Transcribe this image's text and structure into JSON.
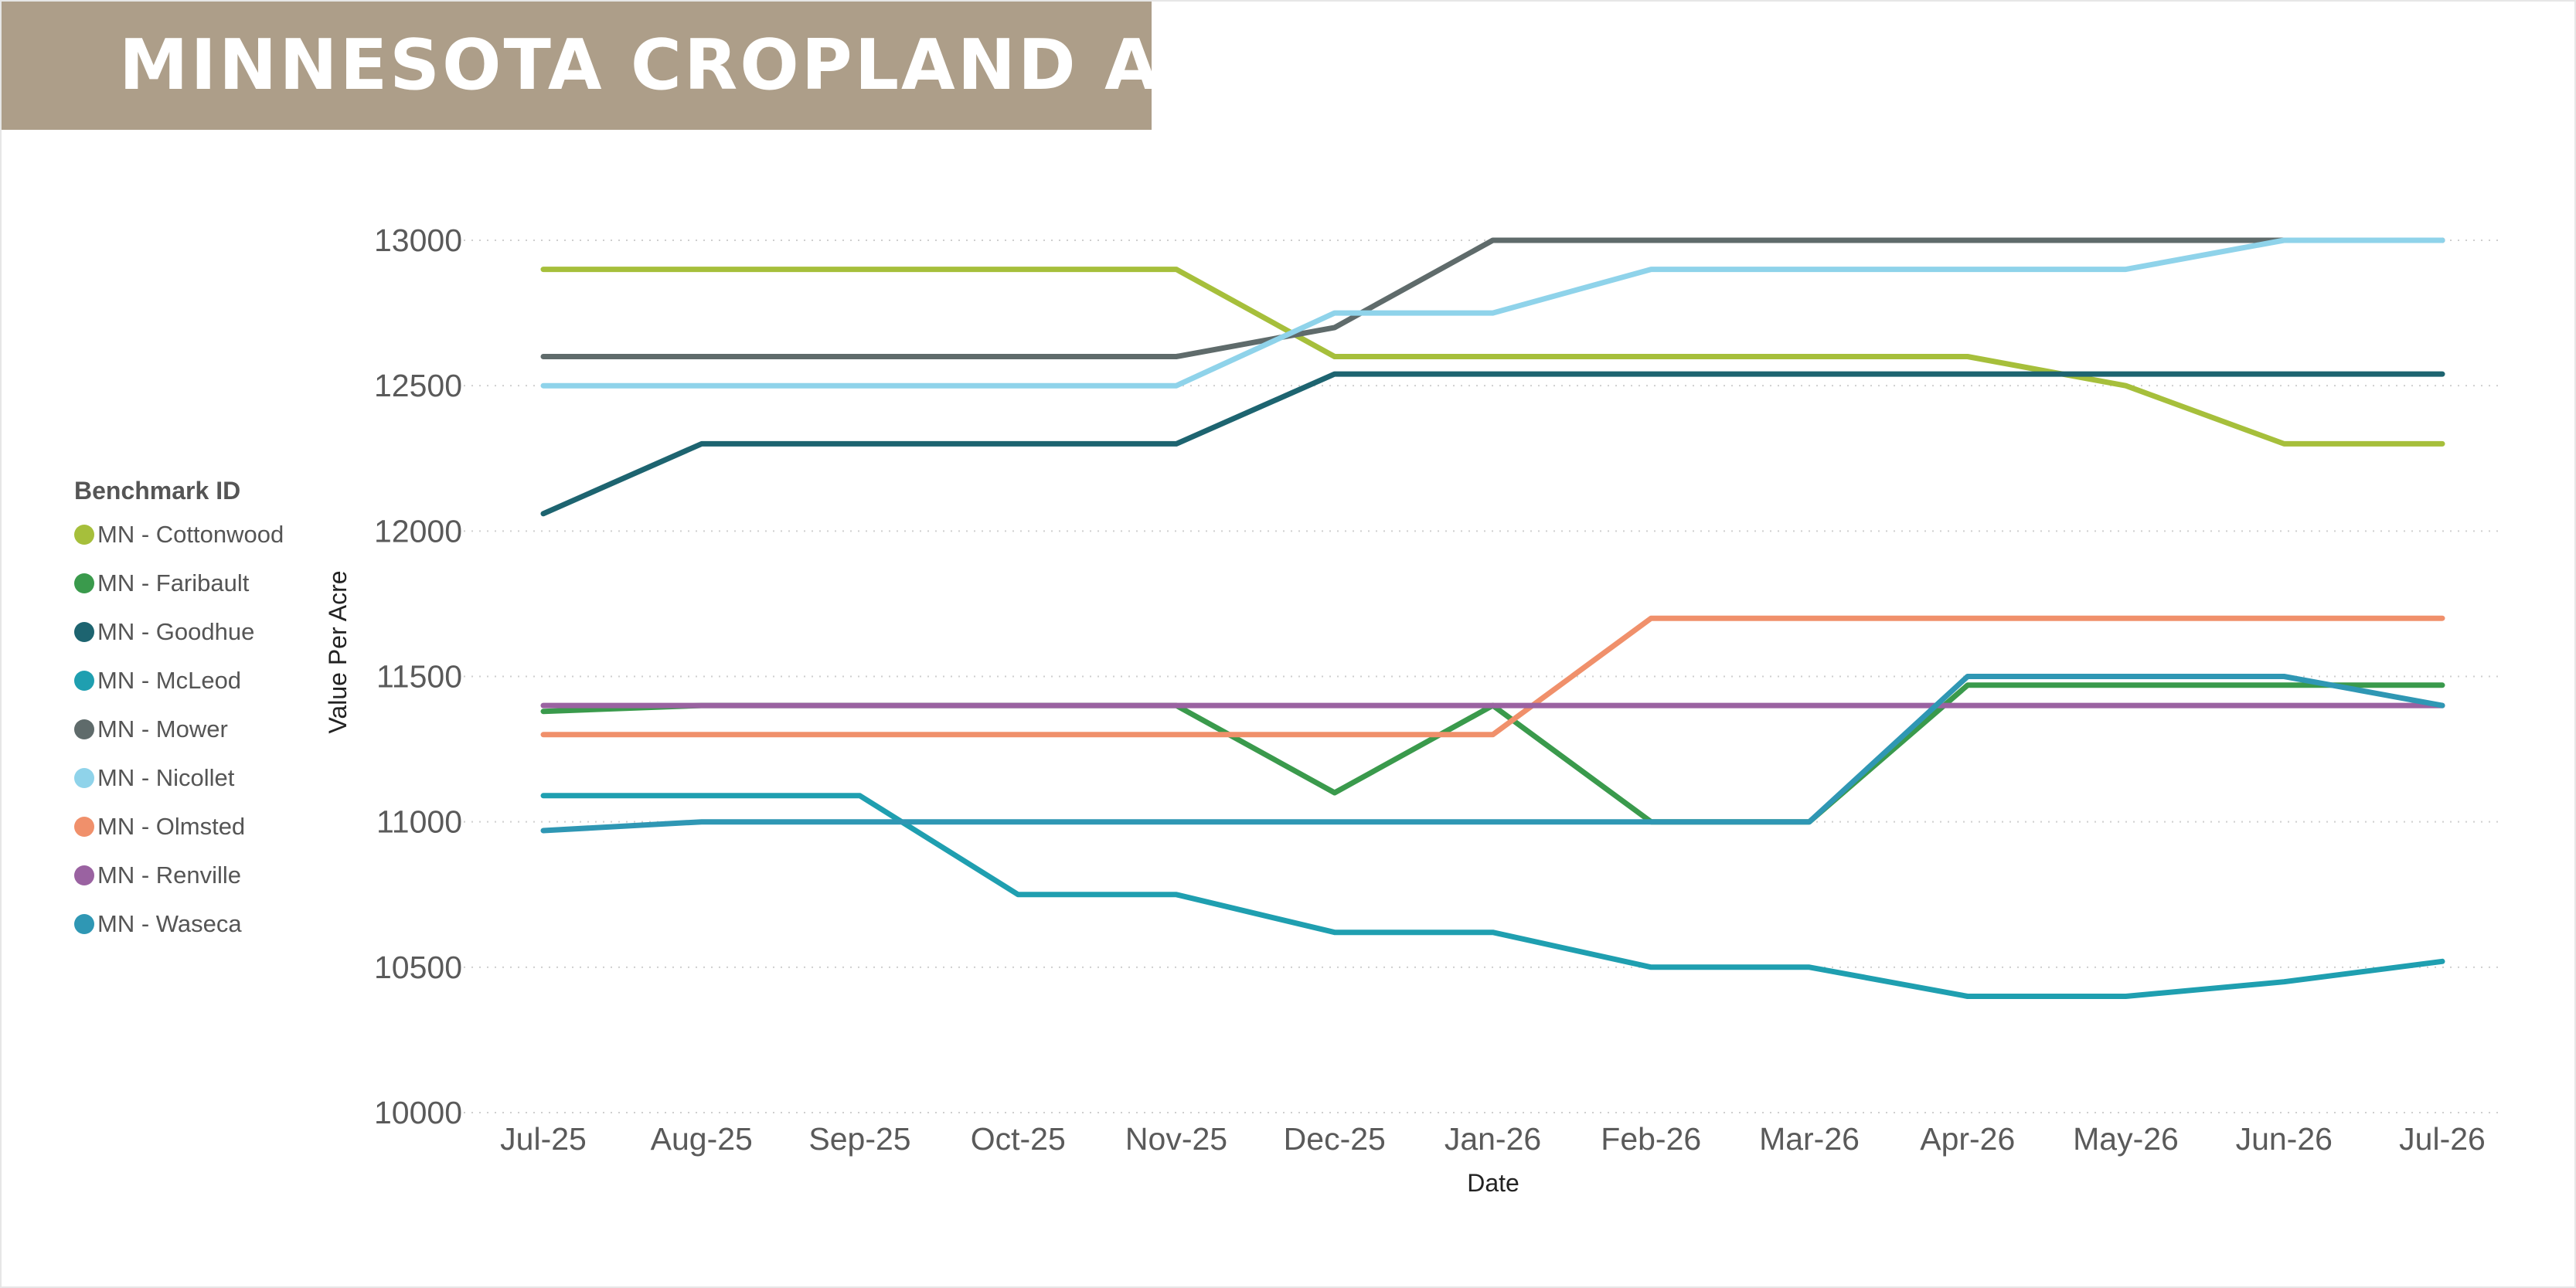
{
  "header": {
    "title": "MINNESOTA CROPLAND A"
  },
  "legend": {
    "title": "Benchmark ID"
  },
  "chart_data": {
    "type": "line",
    "title": "MINNESOTA CROPLAND A",
    "xlabel": "Date",
    "ylabel": "Value Per Acre",
    "ylim": [
      10000,
      13000
    ],
    "yticks": [
      "13000",
      "12500",
      "12000",
      "11500",
      "11000",
      "10500",
      "10000"
    ],
    "grid": true,
    "legend_position": "left",
    "categories": [
      "Jul-25",
      "Aug-25",
      "Sep-25",
      "Oct-25",
      "Nov-25",
      "Dec-25",
      "Jan-26",
      "Feb-26",
      "Mar-26",
      "Apr-26",
      "May-26",
      "Jun-26",
      "Jul-26"
    ],
    "series": [
      {
        "name": "MN - Cottonwood",
        "color": "#a6bf3b",
        "values": [
          12900,
          12900,
          12900,
          12900,
          12900,
          12600,
          12600,
          12600,
          12600,
          12600,
          12500,
          12300,
          12300
        ]
      },
      {
        "name": "MN - Faribault",
        "color": "#3a9a4c",
        "values": [
          11380,
          11400,
          11400,
          11400,
          11400,
          11100,
          11400,
          11000,
          11000,
          11470,
          11470,
          11470,
          11470
        ]
      },
      {
        "name": "MN - Goodhue",
        "color": "#1d6470",
        "values": [
          12060,
          12300,
          12300,
          12300,
          12300,
          12540,
          12540,
          12540,
          12540,
          12540,
          12540,
          12540,
          12540
        ]
      },
      {
        "name": "MN - McLeod",
        "color": "#1f9fb0",
        "values": [
          11090,
          11090,
          11090,
          10750,
          10750,
          10620,
          10620,
          10500,
          10500,
          10400,
          10400,
          10450,
          10520
        ]
      },
      {
        "name": "MN - Mower",
        "color": "#5f6b6b",
        "values": [
          12600,
          12600,
          12600,
          12600,
          12600,
          12700,
          13000,
          13000,
          13000,
          13000,
          13000,
          13000,
          13000
        ]
      },
      {
        "name": "MN - Nicollet",
        "color": "#8fd3ea",
        "values": [
          12500,
          12500,
          12500,
          12500,
          12500,
          12750,
          12750,
          12900,
          12900,
          12900,
          12900,
          13000,
          13000
        ]
      },
      {
        "name": "MN - Olmsted",
        "color": "#f0906b",
        "values": [
          11300,
          11300,
          11300,
          11300,
          11300,
          11300,
          11300,
          11700,
          11700,
          11700,
          11700,
          11700,
          11700
        ]
      },
      {
        "name": "MN - Renville",
        "color": "#9a62a1",
        "values": [
          11400,
          11400,
          11400,
          11400,
          11400,
          11400,
          11400,
          11400,
          11400,
          11400,
          11400,
          11400,
          11400
        ]
      },
      {
        "name": "MN - Waseca",
        "color": "#2f97b4",
        "values": [
          10970,
          11000,
          11000,
          11000,
          11000,
          11000,
          11000,
          11000,
          11000,
          11500,
          11500,
          11500,
          11400
        ]
      }
    ]
  }
}
